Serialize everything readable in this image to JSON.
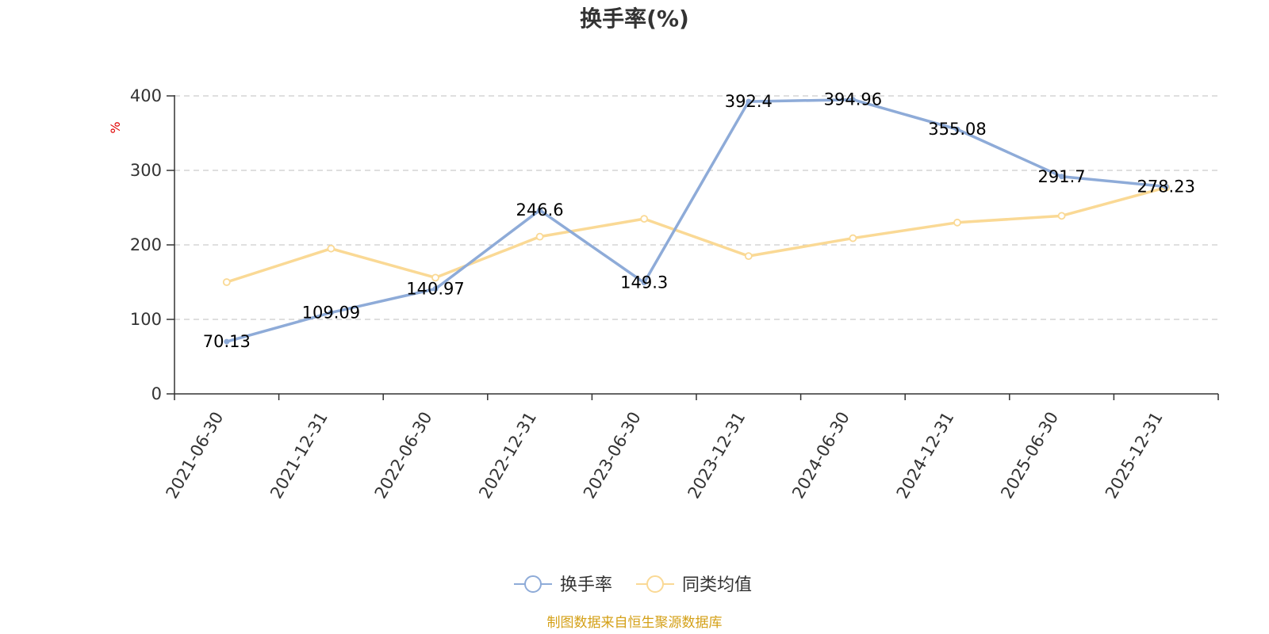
{
  "chart_data": {
    "type": "line",
    "title": "换手率(%)",
    "ylabel": "%",
    "xlabel": "",
    "ylim": [
      0,
      400
    ],
    "y_ticks": [
      "0",
      "100",
      "200",
      "300",
      "400"
    ],
    "categories": [
      "2021-06-30",
      "2021-12-31",
      "2022-06-30",
      "2022-12-31",
      "2023-06-30",
      "2023-12-31",
      "2024-06-30",
      "2024-12-31",
      "2025-06-30",
      "2025-12-31"
    ],
    "grid": true,
    "legend_position": "bottom",
    "series": [
      {
        "name": "换手率",
        "color": "#8eabd8",
        "values": [
          70.13,
          109.09,
          140.97,
          246.6,
          149.3,
          392.4,
          394.96,
          355.08,
          291.7,
          278.23
        ],
        "labels": [
          "70.13",
          "109.09",
          "140.97",
          "246.6",
          "149.3",
          "392.4",
          "394.96",
          "355.08",
          "291.7",
          "278.23"
        ]
      },
      {
        "name": "同类均值",
        "color": "#fad995",
        "values": [
          150,
          195,
          156,
          211,
          235,
          185,
          209,
          230,
          239,
          277
        ]
      }
    ],
    "source": "制图数据来自恒生聚源数据库"
  }
}
